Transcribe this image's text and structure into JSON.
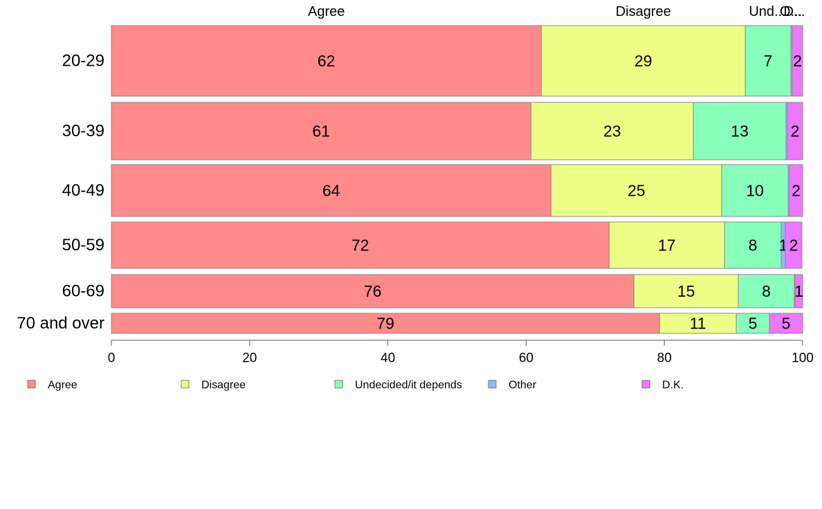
{
  "chart_data": {
    "type": "bar",
    "orientation": "horizontal",
    "stacked": true,
    "categories": [
      "20-29",
      "30-39",
      "40-49",
      "50-59",
      "60-69",
      "70 and over"
    ],
    "series": [
      {
        "name": "Agree",
        "color": "#ff8a8a",
        "values": [
          62.2,
          60.7,
          63.6,
          72.0,
          75.6,
          79.3
        ]
      },
      {
        "name": "Disagree",
        "color": "#eeff88",
        "values": [
          29.5,
          23.5,
          24.7,
          16.7,
          15.1,
          11.1
        ]
      },
      {
        "name": "Undecided/it depends",
        "color": "#88ffbb",
        "values": [
          6.6,
          13.4,
          9.6,
          8.2,
          8.1,
          4.8
        ]
      },
      {
        "name": "Other",
        "color": "#88bbff",
        "values": [
          0.2,
          0.2,
          0.2,
          0.6,
          0.1,
          0.0
        ]
      },
      {
        "name": "D.K.",
        "color": "#ee77ff",
        "values": [
          1.5,
          2.2,
          1.9,
          2.4,
          1.1,
          4.8
        ]
      }
    ],
    "data_labels": [
      [
        "62",
        "29",
        "7",
        "",
        "2"
      ],
      [
        "61",
        "23",
        "13",
        "",
        "2"
      ],
      [
        "64",
        "25",
        "10",
        "",
        "2"
      ],
      [
        "72",
        "17",
        "8",
        "1",
        "2"
      ],
      [
        "76",
        "15",
        "8",
        "",
        "1"
      ],
      [
        "79",
        "11",
        "5",
        "",
        "5"
      ]
    ],
    "column_headers": [
      "Agree",
      "Disagree",
      "Und...",
      "O...",
      "D..."
    ],
    "xlim": [
      0,
      100
    ],
    "xticks": [
      0,
      20,
      40,
      60,
      80,
      100
    ],
    "legend_position": "bottom",
    "grid": false,
    "title": "",
    "xlabel": "",
    "ylabel": ""
  }
}
